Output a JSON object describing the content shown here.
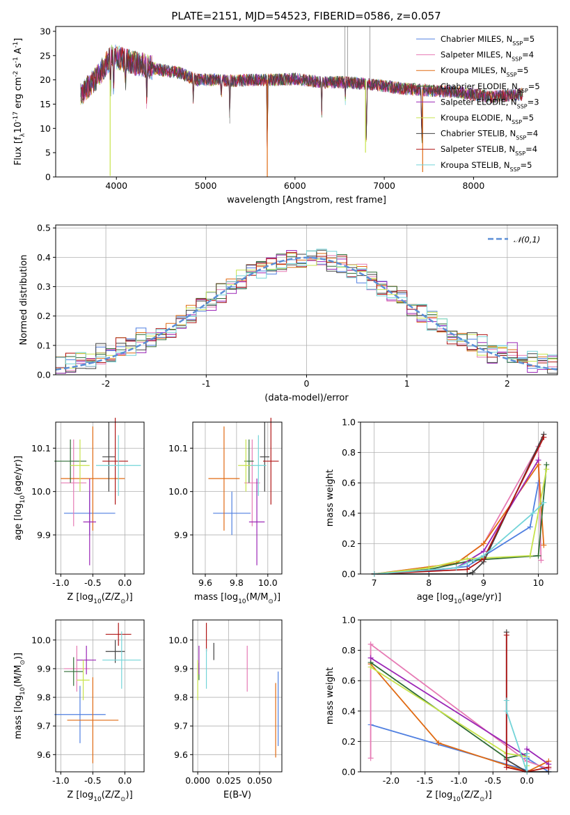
{
  "figure_title": "PLATE=2151, MJD=54523, FIBERID=0586, z=0.057",
  "series": [
    {
      "name": "Chabrier MILES, N$_{SSP}$=5",
      "color": "#4f7fe0"
    },
    {
      "name": "Salpeter MILES, N$_{SSP}$=4",
      "color": "#e67ab4"
    },
    {
      "name": "Kroupa MILES, N$_{SSP}$=5",
      "color": "#e06a12"
    },
    {
      "name": "Chabrier ELODIE, N$_{SSP}$=5",
      "color": "#2e6b35"
    },
    {
      "name": "Salpeter ELODIE, N$_{SSP}$=3",
      "color": "#9b26b6"
    },
    {
      "name": "Kroupa ELODIE, N$_{SSP}$=5",
      "color": "#c7e34b"
    },
    {
      "name": "Chabrier STELIB, N$_{SSP}$=4",
      "color": "#404040"
    },
    {
      "name": "Salpeter STELIB, N$_{SSP}$=4",
      "color": "#b01515"
    },
    {
      "name": "Kroupa STELIB, N$_{SSP}$=5",
      "color": "#73d4d8"
    }
  ],
  "chart_data": [
    {
      "id": "spectrum",
      "type": "line",
      "xlabel": "wavelength [Angstrom, rest frame]",
      "ylabel": "Flux [f$_\\lambda$10$^{-17}$ erg cm$^{-2}$ s$^{-1}$ A$^{-1}$]",
      "xlim": [
        3320,
        8940
      ],
      "ylim": [
        0,
        31
      ],
      "xticks": [
        4000,
        5000,
        6000,
        7000,
        8000
      ],
      "yticks": [
        0,
        5,
        10,
        15,
        20,
        25,
        30
      ],
      "legend": "upper right",
      "continuum": [
        [
          3600,
          17
        ],
        [
          3800,
          21
        ],
        [
          3950,
          25
        ],
        [
          4100,
          24
        ],
        [
          4300,
          23
        ],
        [
          4500,
          22
        ],
        [
          4700,
          21.5
        ],
        [
          4900,
          20
        ],
        [
          5100,
          20
        ],
        [
          5300,
          19.8
        ],
        [
          5500,
          20
        ],
        [
          5800,
          20
        ],
        [
          6000,
          20.2
        ],
        [
          6300,
          19.5
        ],
        [
          6600,
          19.5
        ],
        [
          6900,
          19
        ],
        [
          7200,
          18.2
        ],
        [
          7500,
          17.8
        ],
        [
          7800,
          17.5
        ],
        [
          8000,
          17
        ],
        [
          8200,
          16.5
        ],
        [
          8400,
          16.8
        ],
        [
          8550,
          17
        ]
      ],
      "absorption_features": [
        [
          3934,
          8
        ],
        [
          3969,
          10
        ],
        [
          4102,
          6
        ],
        [
          4340,
          9
        ],
        [
          4861,
          5
        ],
        [
          5175,
          4
        ],
        [
          5270,
          9
        ],
        [
          5690,
          18
        ],
        [
          6300,
          6
        ],
        [
          6563,
          4
        ],
        [
          6800,
          15
        ],
        [
          7420,
          14
        ]
      ]
    },
    {
      "id": "residuals",
      "type": "histogram",
      "xlabel": "(data-model)/error",
      "ylabel": "Normed distribution",
      "xlim": [
        -2.5,
        2.5
      ],
      "ylim": [
        0,
        0.51
      ],
      "xticks": [
        -2,
        -1,
        0,
        1,
        2
      ],
      "yticks": [
        0.0,
        0.1,
        0.2,
        0.3,
        0.4,
        0.5
      ],
      "reference_label": "$\\mathcal{N}(0,1)$",
      "legend": "upper right",
      "bin_width": 0.1
    },
    {
      "id": "age_vs_Z",
      "type": "errorbar",
      "xlabel": "Z [log$_{10}$(Z/Z$_\\odot$)]",
      "ylabel": "age  [log$_{10}$(age/yr)]",
      "xlim": [
        -1.08,
        0.3
      ],
      "ylim": [
        9.81,
        10.16
      ],
      "xticks": [
        -1.0,
        -0.5,
        0.0
      ],
      "yticks": [
        9.9,
        10.0,
        10.1
      ],
      "points": [
        {
          "s": 0,
          "x": -0.55,
          "y": 9.95,
          "xe": 0.4,
          "ye": 0.05
        },
        {
          "s": 1,
          "x": -0.8,
          "y": 10.02,
          "xe": 0.2,
          "ye": 0.1
        },
        {
          "s": 2,
          "x": -0.5,
          "y": 10.03,
          "xe": 0.5,
          "ye": 0.12
        },
        {
          "s": 3,
          "x": -0.85,
          "y": 10.07,
          "xe": 0.25,
          "ye": 0.05
        },
        {
          "s": 4,
          "x": -0.55,
          "y": 9.93,
          "xe": 0.1,
          "ye": 0.1
        },
        {
          "s": 5,
          "x": -0.7,
          "y": 10.06,
          "xe": 0.15,
          "ye": 0.06
        },
        {
          "s": 6,
          "x": -0.25,
          "y": 10.08,
          "xe": 0.1,
          "ye": 0.08
        },
        {
          "s": 7,
          "x": -0.15,
          "y": 10.07,
          "xe": 0.2,
          "ye": 0.1
        },
        {
          "s": 8,
          "x": -0.1,
          "y": 10.06,
          "xe": 0.35,
          "ye": 0.07
        }
      ]
    },
    {
      "id": "age_vs_mass",
      "type": "errorbar",
      "xlabel": "mass [log$_{10}$(M/M$_\\odot$)]",
      "ylabel": "",
      "xlim": [
        9.52,
        10.09
      ],
      "ylim": [
        9.81,
        10.16
      ],
      "xticks": [
        9.6,
        9.8,
        10.0
      ],
      "yticks": [
        9.9,
        10.0,
        10.1
      ],
      "points": [
        {
          "s": 0,
          "x": 9.77,
          "y": 9.95,
          "xe": 0.12,
          "ye": 0.05
        },
        {
          "s": 1,
          "x": 9.9,
          "y": 10.02,
          "xe": 0.05,
          "ye": 0.1
        },
        {
          "s": 2,
          "x": 9.72,
          "y": 10.03,
          "xe": 0.1,
          "ye": 0.12
        },
        {
          "s": 3,
          "x": 9.88,
          "y": 10.07,
          "xe": 0.03,
          "ye": 0.05
        },
        {
          "s": 4,
          "x": 9.93,
          "y": 9.93,
          "xe": 0.05,
          "ye": 0.1
        },
        {
          "s": 5,
          "x": 9.86,
          "y": 10.06,
          "xe": 0.05,
          "ye": 0.06
        },
        {
          "s": 6,
          "x": 9.98,
          "y": 10.08,
          "xe": 0.03,
          "ye": 0.08
        },
        {
          "s": 7,
          "x": 10.02,
          "y": 10.07,
          "xe": 0.05,
          "ye": 0.1
        },
        {
          "s": 8,
          "x": 9.94,
          "y": 10.06,
          "xe": 0.05,
          "ye": 0.07
        }
      ]
    },
    {
      "id": "weight_vs_age",
      "type": "line",
      "xlabel": "age  [log$_{10}$(age/yr)]",
      "ylabel": "mass weight",
      "xlim": [
        6.75,
        10.35
      ],
      "ylim": [
        0,
        1.0
      ],
      "xticks": [
        7,
        8,
        9,
        10
      ],
      "yticks": [
        0.0,
        0.2,
        0.4,
        0.6,
        0.8,
        1.0
      ],
      "lines": [
        {
          "s": 0,
          "pts": [
            [
              7.0,
              0.0
            ],
            [
              8.0,
              0.02
            ],
            [
              8.7,
              0.05
            ],
            [
              9.85,
              0.31
            ],
            [
              10.0,
              0.6
            ]
          ]
        },
        {
          "s": 1,
          "pts": [
            [
              7.0,
              0.0
            ],
            [
              8.5,
              0.07
            ],
            [
              9.0,
              0.2
            ],
            [
              10.0,
              0.84
            ],
            [
              10.05,
              0.09
            ]
          ]
        },
        {
          "s": 2,
          "pts": [
            [
              7.0,
              0.0
            ],
            [
              8.5,
              0.07
            ],
            [
              9.0,
              0.2
            ],
            [
              10.0,
              0.72
            ],
            [
              10.1,
              0.19
            ]
          ]
        },
        {
          "s": 3,
          "pts": [
            [
              7.0,
              0.0
            ],
            [
              8.0,
              0.03
            ],
            [
              8.8,
              0.09
            ],
            [
              10.0,
              0.12
            ],
            [
              10.15,
              0.72
            ]
          ]
        },
        {
          "s": 4,
          "pts": [
            [
              7.0,
              0.0
            ],
            [
              8.5,
              0.04
            ],
            [
              9.0,
              0.15
            ],
            [
              10.0,
              0.75
            ]
          ]
        },
        {
          "s": 5,
          "pts": [
            [
              7.0,
              0.0
            ],
            [
              8.0,
              0.04
            ],
            [
              8.7,
              0.1
            ],
            [
              9.85,
              0.12
            ],
            [
              10.15,
              0.69
            ]
          ]
        },
        {
          "s": 6,
          "pts": [
            [
              7.0,
              0.0
            ],
            [
              8.7,
              0.0
            ],
            [
              8.8,
              0.01
            ],
            [
              9.0,
              0.08
            ],
            [
              10.1,
              0.92
            ]
          ]
        },
        {
          "s": 7,
          "pts": [
            [
              7.0,
              0.0
            ],
            [
              8.7,
              0.03
            ],
            [
              9.0,
              0.1
            ],
            [
              10.1,
              0.9
            ]
          ]
        },
        {
          "s": 8,
          "pts": [
            [
              7.0,
              0.0
            ],
            [
              8.5,
              0.04
            ],
            [
              9.0,
              0.12
            ],
            [
              9.9,
              0.4
            ],
            [
              10.1,
              0.47
            ]
          ]
        }
      ]
    },
    {
      "id": "mass_vs_Z",
      "type": "errorbar",
      "xlabel": "Z [log$_{10}$(Z/Z$_\\odot$)]",
      "ylabel": "mass [log$_{10}$(M/M$_\\odot$)]",
      "xlim": [
        -1.08,
        0.3
      ],
      "ylim": [
        9.54,
        10.07
      ],
      "xticks": [
        -1.0,
        -0.5,
        0.0
      ],
      "yticks": [
        9.6,
        9.7,
        9.8,
        9.9,
        10.0
      ],
      "points": [
        {
          "s": 0,
          "x": -0.7,
          "y": 9.74,
          "xe": 0.4,
          "ye": 0.1
        },
        {
          "s": 1,
          "x": -0.75,
          "y": 9.9,
          "xe": 0.2,
          "ye": 0.08
        },
        {
          "s": 2,
          "x": -0.5,
          "y": 9.72,
          "xe": 0.4,
          "ye": 0.15
        },
        {
          "s": 3,
          "x": -0.8,
          "y": 9.89,
          "xe": 0.15,
          "ye": 0.05
        },
        {
          "s": 4,
          "x": -0.6,
          "y": 9.93,
          "xe": 0.15,
          "ye": 0.05
        },
        {
          "s": 5,
          "x": -0.65,
          "y": 9.86,
          "xe": 0.1,
          "ye": 0.07
        },
        {
          "s": 6,
          "x": -0.15,
          "y": 9.96,
          "xe": 0.15,
          "ye": 0.04
        },
        {
          "s": 7,
          "x": -0.1,
          "y": 10.02,
          "xe": 0.2,
          "ye": 0.04
        },
        {
          "s": 8,
          "x": -0.05,
          "y": 9.93,
          "xe": 0.3,
          "ye": 0.1
        }
      ]
    },
    {
      "id": "mass_vs_ebv",
      "type": "errorbar",
      "xlabel": "E(B-V)",
      "ylabel": "",
      "xlim": [
        -0.004,
        0.068
      ],
      "ylim": [
        9.54,
        10.07
      ],
      "xticks": [
        0.0,
        0.025,
        0.05
      ],
      "xticklabels": [
        "0.000",
        "0.025",
        "0.050"
      ],
      "yticks": [
        9.6,
        9.7,
        9.8,
        9.9,
        10.0
      ],
      "points": [
        {
          "s": 0,
          "x": 0.065,
          "y": 9.76,
          "xe": 0,
          "ye": 0.13
        },
        {
          "s": 1,
          "x": 0.04,
          "y": 9.9,
          "xe": 0,
          "ye": 0.08
        },
        {
          "s": 2,
          "x": 0.063,
          "y": 9.72,
          "xe": 0,
          "ye": 0.13
        },
        {
          "s": 3,
          "x": 0.001,
          "y": 9.89,
          "xe": 0,
          "ye": 0.03
        },
        {
          "s": 4,
          "x": 0.001,
          "y": 9.93,
          "xe": 0,
          "ye": 0.05
        },
        {
          "s": 5,
          "x": 0.0,
          "y": 9.86,
          "xe": 0,
          "ye": 0.07
        },
        {
          "s": 6,
          "x": 0.013,
          "y": 9.96,
          "xe": 0,
          "ye": 0.03
        },
        {
          "s": 7,
          "x": 0.007,
          "y": 10.01,
          "xe": 0,
          "ye": 0.05
        },
        {
          "s": 8,
          "x": 0.007,
          "y": 9.9,
          "xe": 0,
          "ye": 0.07
        }
      ]
    },
    {
      "id": "weight_vs_Z",
      "type": "line",
      "xlabel": "Z [log$_{10}$(Z/Z$_\\odot$)]",
      "ylabel": "mass weight",
      "xlim": [
        -2.45,
        0.45
      ],
      "ylim": [
        0,
        1.0
      ],
      "xticks": [
        -2.0,
        -1.5,
        -1.0,
        -0.5,
        0.0
      ],
      "yticks": [
        0.0,
        0.2,
        0.4,
        0.6,
        0.8,
        1.0
      ],
      "lines": [
        {
          "s": 0,
          "pts": [
            [
              -2.3,
              0.31
            ],
            [
              0.0,
              0.01
            ],
            [
              0.0,
              0.09
            ],
            [
              0.32,
              0.0
            ]
          ]
        },
        {
          "s": 1,
          "pts": [
            [
              -2.3,
              0.09
            ],
            [
              -2.3,
              0.84
            ],
            [
              0.0,
              0.07
            ],
            [
              0.32,
              0.02
            ]
          ]
        },
        {
          "s": 2,
          "pts": [
            [
              -2.3,
              0.71
            ],
            [
              -1.3,
              0.19
            ],
            [
              0.0,
              0.0
            ],
            [
              0.32,
              0.07
            ]
          ]
        },
        {
          "s": 3,
          "pts": [
            [
              -2.3,
              0.72
            ],
            [
              -0.3,
              0.09
            ],
            [
              0.0,
              0.12
            ],
            [
              0.0,
              0.0
            ]
          ]
        },
        {
          "s": 4,
          "pts": [
            [
              -2.3,
              0.75
            ],
            [
              0.0,
              0.1
            ],
            [
              0.0,
              0.15
            ],
            [
              0.32,
              0.05
            ]
          ]
        },
        {
          "s": 5,
          "pts": [
            [
              -2.3,
              0.69
            ],
            [
              -0.3,
              0.12
            ],
            [
              0.0,
              0.1
            ],
            [
              0.0,
              0.04
            ]
          ]
        },
        {
          "s": 6,
          "pts": [
            [
              -0.3,
              0.92
            ],
            [
              -0.3,
              0.08
            ],
            [
              0.0,
              0.0
            ],
            [
              0.32,
              0.0
            ]
          ]
        },
        {
          "s": 7,
          "pts": [
            [
              -0.3,
              0.9
            ],
            [
              -0.3,
              0.03
            ],
            [
              0.0,
              0.0
            ],
            [
              0.32,
              0.03
            ]
          ]
        },
        {
          "s": 8,
          "pts": [
            [
              -0.3,
              0.47
            ],
            [
              -0.3,
              0.4
            ],
            [
              0.0,
              0.0
            ],
            [
              0.0,
              0.12
            ]
          ]
        }
      ]
    }
  ]
}
